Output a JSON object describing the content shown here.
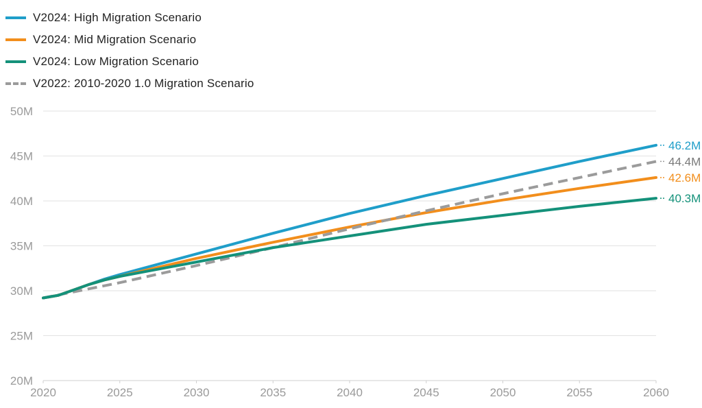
{
  "chart_data": {
    "type": "line",
    "title": "",
    "xlabel": "",
    "ylabel": "",
    "xlim": [
      2020,
      2060
    ],
    "ylim": [
      20,
      50
    ],
    "y_unit_suffix": "M",
    "x_ticks": [
      2020,
      2025,
      2030,
      2035,
      2040,
      2045,
      2050,
      2055,
      2060
    ],
    "y_ticks": [
      20,
      25,
      30,
      35,
      40,
      45,
      50
    ],
    "grid": "horizontal",
    "legend_position": "top-left",
    "series": [
      {
        "name": "V2024: High Migration Scenario",
        "color": "#1f9ec9",
        "dashed": false,
        "end_label": "46.2M",
        "x": [
          2020,
          2021,
          2022,
          2023,
          2024,
          2025,
          2030,
          2035,
          2040,
          2045,
          2050,
          2055,
          2060
        ],
        "y": [
          29.2,
          29.5,
          30.1,
          30.7,
          31.3,
          31.8,
          34.1,
          36.4,
          38.6,
          40.6,
          42.5,
          44.4,
          46.2
        ]
      },
      {
        "name": "V2024: Mid Migration Scenario",
        "color": "#f28e1c",
        "dashed": false,
        "end_label": "42.6M",
        "x": [
          2020,
          2021,
          2022,
          2023,
          2024,
          2025,
          2030,
          2035,
          2040,
          2045,
          2050,
          2055,
          2060
        ],
        "y": [
          29.2,
          29.5,
          30.1,
          30.7,
          31.2,
          31.6,
          33.6,
          35.4,
          37.1,
          38.7,
          40.1,
          41.4,
          42.6
        ]
      },
      {
        "name": "V2024: Low Migration Scenario",
        "color": "#14917a",
        "dashed": false,
        "end_label": "40.3M",
        "x": [
          2020,
          2021,
          2022,
          2023,
          2024,
          2025,
          2030,
          2035,
          2040,
          2045,
          2050,
          2055,
          2060
        ],
        "y": [
          29.2,
          29.5,
          30.1,
          30.7,
          31.2,
          31.6,
          33.2,
          34.8,
          36.1,
          37.4,
          38.4,
          39.4,
          40.3
        ]
      },
      {
        "name": "V2022: 2010-2020 1.0 Migration Scenario",
        "color": "#9b9b9b",
        "dashed": true,
        "end_label": "44.4M",
        "x": [
          2020,
          2025,
          2030,
          2035,
          2040,
          2045,
          2050,
          2055,
          2060
        ],
        "y": [
          29.2,
          30.9,
          32.8,
          34.8,
          36.9,
          38.9,
          40.8,
          42.6,
          44.4
        ]
      }
    ]
  }
}
